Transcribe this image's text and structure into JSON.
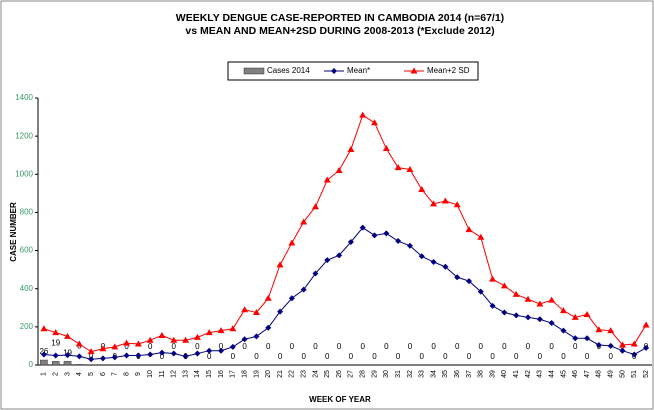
{
  "chart_data": {
    "type": "line",
    "title": "WEEKLY DENGUE CASE-REPORTED IN CAMBODIA 2014 (n=67/1)",
    "subtitle": "vs MEAN AND MEAN+2SD DURING 2008-2013 (*Exclude 2012)",
    "x_label": "WEEK OF YEAR",
    "y_label": "CASE NUMBER",
    "categories": [
      1,
      2,
      3,
      4,
      5,
      6,
      7,
      8,
      9,
      10,
      11,
      12,
      13,
      14,
      15,
      16,
      17,
      18,
      19,
      20,
      21,
      22,
      23,
      24,
      25,
      26,
      27,
      28,
      29,
      30,
      31,
      32,
      33,
      34,
      35,
      36,
      37,
      38,
      39,
      40,
      41,
      42,
      43,
      44,
      45,
      46,
      47,
      48,
      49,
      50,
      51,
      52
    ],
    "series": [
      {
        "name": "Cases 2014",
        "type": "bar",
        "color": "#808080",
        "values": [
          26,
          19,
          19,
          3,
          0,
          0,
          0,
          0,
          0,
          0,
          0,
          0,
          0,
          0,
          0,
          0,
          0,
          0,
          0,
          0,
          0,
          0,
          0,
          0,
          0,
          0,
          0,
          0,
          0,
          0,
          0,
          0,
          0,
          0,
          0,
          0,
          0,
          0,
          0,
          0,
          0,
          0,
          0,
          0,
          0,
          0,
          0,
          0,
          0,
          0,
          0,
          0
        ]
      },
      {
        "name": "Mean*",
        "type": "line",
        "marker": "diamond",
        "color": "#000080",
        "values": [
          55,
          50,
          52,
          45,
          30,
          35,
          40,
          50,
          50,
          55,
          65,
          60,
          45,
          60,
          75,
          75,
          95,
          135,
          150,
          195,
          280,
          350,
          395,
          480,
          550,
          575,
          645,
          720,
          680,
          690,
          650,
          625,
          570,
          540,
          515,
          460,
          440,
          385,
          310,
          275,
          260,
          250,
          240,
          220,
          180,
          140,
          140,
          105,
          100,
          75,
          55,
          90
        ]
      },
      {
        "name": "Mean+2 SD",
        "type": "line",
        "marker": "triangle",
        "color": "#ff0000",
        "values": [
          190,
          170,
          150,
          110,
          70,
          85,
          95,
          115,
          110,
          130,
          155,
          130,
          130,
          145,
          170,
          180,
          190,
          290,
          275,
          350,
          525,
          640,
          750,
          830,
          970,
          1020,
          1130,
          1310,
          1270,
          1135,
          1035,
          1025,
          920,
          845,
          860,
          840,
          710,
          670,
          450,
          415,
          370,
          345,
          320,
          340,
          285,
          250,
          265,
          185,
          180,
          105,
          110,
          210
        ]
      }
    ],
    "ylim": [
      0,
      1400
    ],
    "yticks": [
      0,
      200,
      400,
      600,
      800,
      1000,
      1200,
      1400
    ],
    "grid": false
  }
}
